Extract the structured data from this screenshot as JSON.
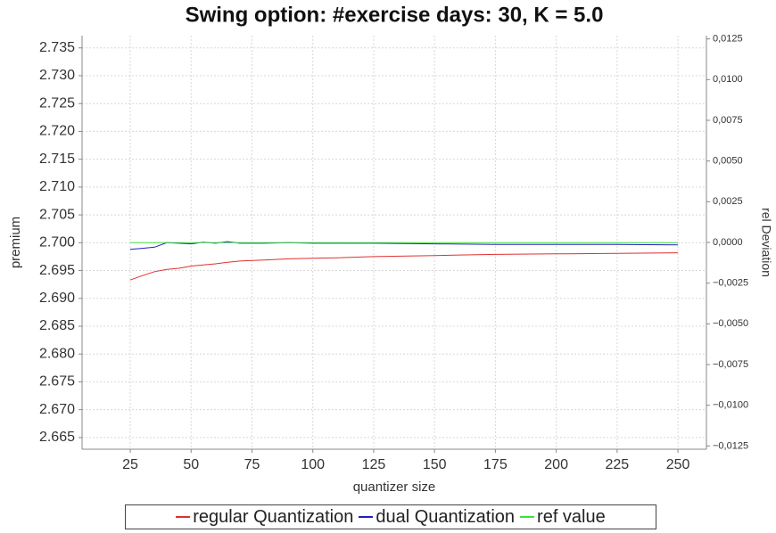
{
  "chart_data": {
    "type": "line",
    "title": "Swing option: #exercise days: 30, K = 5.0",
    "x_label": "quantizer size",
    "y_label": "premium",
    "y2_label": "rel Deviation",
    "x": [
      25,
      30,
      35,
      40,
      45,
      50,
      55,
      60,
      65,
      70,
      75,
      80,
      90,
      100,
      110,
      125,
      150,
      175,
      200,
      225,
      250
    ],
    "series": [
      {
        "name": "regular Quantization",
        "color": "#e03030",
        "values": [
          2.6933,
          2.6941,
          2.6948,
          2.6952,
          2.6954,
          2.6958,
          2.696,
          2.6962,
          2.6965,
          2.6967,
          2.6968,
          2.6969,
          2.6971,
          2.6972,
          2.6973,
          2.6975,
          2.6977,
          2.6979,
          2.698,
          2.6981,
          2.6982
        ]
      },
      {
        "name": "dual Quantization",
        "color": "#2020c0",
        "values": [
          2.6988,
          2.699,
          2.6992,
          2.7,
          2.6999,
          2.6998,
          2.7001,
          2.6999,
          2.7002,
          2.6999,
          2.6999,
          2.6999,
          2.7,
          2.6999,
          2.6999,
          2.6999,
          2.6998,
          2.6997,
          2.6997,
          2.6997,
          2.6996
        ]
      },
      {
        "name": "ref value",
        "color": "#40e040",
        "values": [
          2.7,
          2.7,
          2.7,
          2.7,
          2.7,
          2.7,
          2.7,
          2.7,
          2.7,
          2.7,
          2.7,
          2.7,
          2.7,
          2.7,
          2.7,
          2.7,
          2.7,
          2.7,
          2.7,
          2.7,
          2.7
        ]
      }
    ],
    "xlim": [
      5.2,
      261.7
    ],
    "xticks": [
      25,
      50,
      75,
      100,
      125,
      150,
      175,
      200,
      225,
      250
    ],
    "ylim": [
      2.6629,
      2.7372
    ],
    "yticks": [
      2.665,
      {
        "value": 2.67,
        "label": "2.670"
      },
      2.675,
      {
        "value": 2.68,
        "label": "2.680"
      },
      2.685,
      {
        "value": 2.69,
        "label": "2.690"
      },
      2.695,
      {
        "value": 2.7,
        "label": "2.700"
      },
      2.705,
      {
        "value": 2.71,
        "label": "2.710"
      },
      2.715,
      {
        "value": 2.72,
        "label": "2.720"
      },
      2.725,
      {
        "value": 2.73,
        "label": "2.730"
      },
      2.735
    ],
    "y2lim": [
      -0.0127,
      0.0127
    ],
    "y2ticks": [
      {
        "value": -0.0125,
        "label": "−0,0125"
      },
      {
        "value": -0.01,
        "label": "−0,0100"
      },
      {
        "value": -0.0075,
        "label": "−0,0075"
      },
      {
        "value": -0.005,
        "label": "−0,0050"
      },
      {
        "value": -0.0025,
        "label": "−0,0025"
      },
      {
        "value": 0,
        "label": "0,0000"
      },
      {
        "value": 0.0025,
        "label": "0,0025"
      },
      {
        "value": 0.005,
        "label": "0,0050"
      },
      {
        "value": 0.0075,
        "label": "0,0075"
      },
      {
        "value": 0.01,
        "label": "0,0100"
      },
      {
        "value": 0.0125,
        "label": "0,0125"
      }
    ],
    "grid": true,
    "legend": "bottom"
  }
}
